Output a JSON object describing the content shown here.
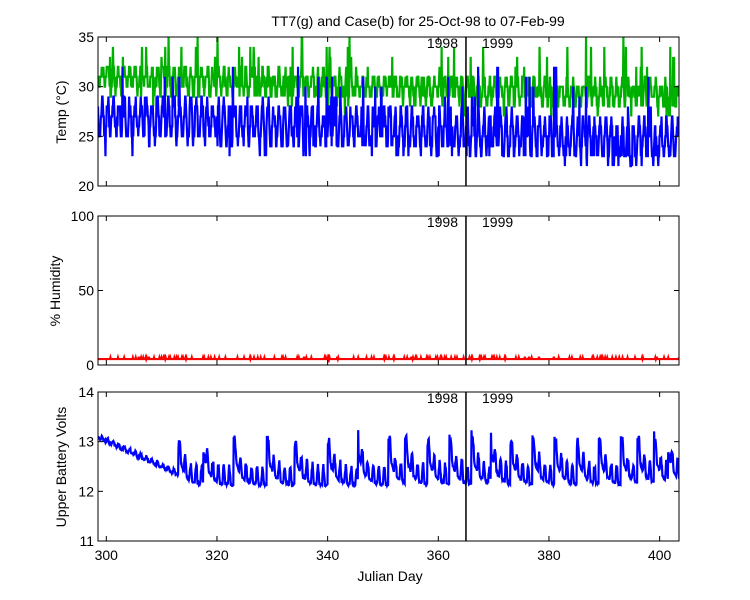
{
  "title": "TT7(g) and Case(b) for 25-Oct-98 to 07-Feb-99",
  "xlabel": "Julian Day",
  "xlim": [
    298.5,
    403.5
  ],
  "xticks": [
    "300",
    "320",
    "340",
    "360",
    "380",
    "400"
  ],
  "divider_x": 365,
  "year_left": "1998",
  "year_right": "1999",
  "chart_data": [
    {
      "type": "line",
      "ylabel": "Temp  (°C)",
      "ylim": [
        20,
        35
      ],
      "yticks": [
        "20",
        "25",
        "30",
        "35"
      ],
      "series": [
        {
          "color": "#00b000",
          "base": 31.0,
          "amp": 1.0,
          "spike": 35,
          "low": 29,
          "trend": -2.0
        },
        {
          "color": "#0000ff",
          "base": 27.0,
          "amp": 1.8,
          "spike": 32,
          "low": 24,
          "trend": -2.5
        }
      ]
    },
    {
      "type": "line",
      "ylabel": "% Humidity",
      "ylim": [
        0,
        100
      ],
      "yticks": [
        "0",
        "50",
        "100"
      ],
      "series": [
        {
          "color": "#ff0000",
          "level": 4
        }
      ]
    },
    {
      "type": "line",
      "ylabel": "Upper Battery Volts",
      "ylim": [
        11,
        14
      ],
      "yticks": [
        "11",
        "12",
        "13",
        "14"
      ],
      "series": [
        {
          "color": "#0000ff",
          "start": 13.1,
          "decay_to": 12.35,
          "recharge_peak": 13.05,
          "floor": 12.15
        }
      ]
    }
  ]
}
